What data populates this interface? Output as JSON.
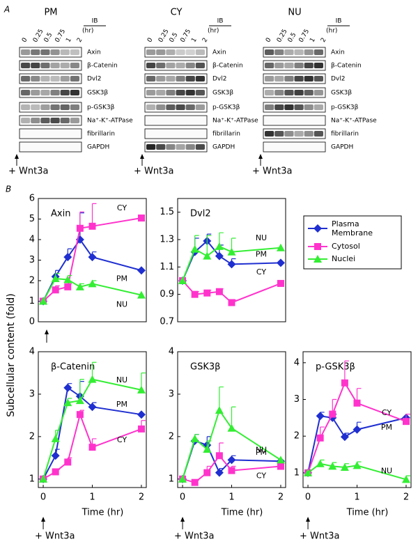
{
  "panel_a": {
    "label": "A",
    "blots": [
      {
        "title": "PM",
        "ib": "IB",
        "times": [
          "0",
          "0.25",
          "0.5",
          "0.75",
          "1",
          "2"
        ],
        "unit": "(hr)",
        "rows": [
          "Axin",
          "β-Catenin",
          "Dvl2",
          "GSK3β",
          "p-GSK3β",
          "Na⁺-K⁺-ATPase",
          "fibrillarin",
          "GAPDH"
        ],
        "treatment": "+ Wnt3a"
      },
      {
        "title": "CY",
        "ib": "IB",
        "times": [
          "0",
          "0.25",
          "0.5",
          "0.75",
          "1",
          "2"
        ],
        "unit": "(hr)",
        "rows": [
          "Axin",
          "β-Catenin",
          "Dvl2",
          "GSK3β",
          "p-GSK3β",
          "Na⁺-K⁺-ATPase",
          "fibrillarin",
          "GAPDH"
        ],
        "treatment": "+ Wnt3a"
      },
      {
        "title": "NU",
        "ib": "IB",
        "times": [
          "0",
          "0.25",
          "0.5",
          "0.75",
          "1",
          "2"
        ],
        "unit": "(hr)",
        "rows": [
          "Axin",
          "β-Catenin",
          "Dvl2",
          "GSK3β",
          "p-GSK3β",
          "Na⁺-K⁺-ATPase",
          "fibrillarin",
          "GAPDH"
        ],
        "treatment": "+ Wnt3a"
      }
    ]
  },
  "panel_b": {
    "label": "B",
    "y_axis_label": "Subcellular content (fold)"
  },
  "chart_data": [
    {
      "type": "line",
      "title": "Axin",
      "x": [
        0,
        0.25,
        0.5,
        0.75,
        1,
        2
      ],
      "xlim": [
        -0.1,
        2.1
      ],
      "ylim": [
        0,
        6
      ],
      "yticks": [
        0,
        1,
        2,
        3,
        4,
        5,
        6
      ],
      "series": [
        {
          "name": "Plasma Membrane",
          "label": "PM",
          "color": "#1f2fd0",
          "values": [
            1,
            2.2,
            3.15,
            4.0,
            3.15,
            2.5
          ],
          "errors": [
            0,
            0.3,
            0.4,
            1.3,
            0.25,
            0
          ]
        },
        {
          "name": "Cytosol",
          "label": "CY",
          "color": "#ff33cc",
          "values": [
            1,
            1.55,
            1.7,
            4.55,
            4.65,
            5.05
          ],
          "errors": [
            0,
            0.2,
            0.15,
            0.8,
            1.1,
            0
          ]
        },
        {
          "name": "Nuclei",
          "label": "NU",
          "color": "#33ee33",
          "values": [
            1,
            2.1,
            2.05,
            1.7,
            1.85,
            1.3
          ],
          "errors": [
            0,
            0.25,
            0.2,
            0.15,
            0.15,
            0
          ]
        }
      ]
    },
    {
      "type": "line",
      "title": "Dvl2",
      "x": [
        0,
        0.25,
        0.5,
        0.75,
        1,
        2
      ],
      "xlim": [
        -0.1,
        2.1
      ],
      "ylim": [
        0.7,
        1.6
      ],
      "yticks": [
        0.7,
        0.9,
        1.1,
        1.3,
        1.5
      ],
      "series": [
        {
          "name": "Plasma Membrane",
          "label": "PM",
          "color": "#1f2fd0",
          "values": [
            1,
            1.21,
            1.29,
            1.18,
            1.12,
            1.13
          ],
          "errors": [
            0,
            0.1,
            0.05,
            0.08,
            0.04,
            0
          ]
        },
        {
          "name": "Cytosol",
          "label": "CY",
          "color": "#ff33cc",
          "values": [
            1,
            0.9,
            0.91,
            0.92,
            0.84,
            0.98
          ],
          "errors": [
            0,
            0.02,
            0.02,
            0.02,
            0.02,
            0
          ]
        },
        {
          "name": "Nuclei",
          "label": "NU",
          "color": "#33ee33",
          "values": [
            1,
            1.23,
            1.18,
            1.25,
            1.21,
            1.24
          ],
          "errors": [
            0,
            0.1,
            0.15,
            0.1,
            0.1,
            0
          ]
        }
      ]
    },
    {
      "type": "line",
      "title": "β-Catenin",
      "x": [
        0,
        0.25,
        0.5,
        0.75,
        1,
        2
      ],
      "xlim": [
        -0.1,
        2.1
      ],
      "xticks": [
        0,
        1,
        2
      ],
      "xlabel": "Time (hr)",
      "treatment": "+ Wnt3a",
      "ylim": [
        0.8,
        4
      ],
      "yticks": [
        1,
        2,
        3,
        4
      ],
      "series": [
        {
          "name": "Plasma Membrane",
          "label": "PM",
          "color": "#1f2fd0",
          "values": [
            1,
            1.55,
            3.15,
            2.95,
            2.7,
            2.52
          ],
          "errors": [
            0,
            0.15,
            0.1,
            0.35,
            0.1,
            0
          ]
        },
        {
          "name": "Cytosol",
          "label": "CY",
          "color": "#ff33cc",
          "values": [
            1,
            1.17,
            1.4,
            2.52,
            1.75,
            2.18
          ],
          "errors": [
            0,
            0.05,
            0.1,
            0.1,
            0.2,
            0.2
          ]
        },
        {
          "name": "Nuclei",
          "label": "NU",
          "color": "#33ee33",
          "values": [
            1,
            1.95,
            2.8,
            2.85,
            3.35,
            3.1
          ],
          "errors": [
            0,
            0.2,
            0.1,
            0.5,
            0.4,
            0.4
          ]
        }
      ]
    },
    {
      "type": "line",
      "title": "GSK3β",
      "x": [
        0,
        0.25,
        0.5,
        0.75,
        1,
        2
      ],
      "xlim": [
        -0.1,
        2.1
      ],
      "xticks": [
        0,
        1,
        2
      ],
      "xlabel": "Time (hr)",
      "treatment": "+ Wnt3a",
      "ylim": [
        0.8,
        4
      ],
      "yticks": [
        1,
        2,
        3,
        4
      ],
      "series": [
        {
          "name": "Plasma Membrane",
          "label": "PM",
          "color": "#1f2fd0",
          "values": [
            1,
            1.9,
            1.8,
            1.15,
            1.45,
            1.42
          ],
          "errors": [
            0,
            0.15,
            0.2,
            0.1,
            0.1,
            0
          ]
        },
        {
          "name": "Cytosol",
          "label": "CY",
          "color": "#ff33cc",
          "values": [
            1,
            0.92,
            1.15,
            1.55,
            1.2,
            1.3
          ],
          "errors": [
            0,
            0.05,
            0.15,
            0.3,
            0.1,
            0
          ]
        },
        {
          "name": "Nuclei",
          "label": "NU",
          "color": "#33ee33",
          "values": [
            1,
            1.95,
            1.7,
            2.62,
            2.2,
            1.45
          ],
          "errors": [
            0,
            0.1,
            0.2,
            0.55,
            0.5,
            0
          ]
        }
      ]
    },
    {
      "type": "line",
      "title": "p-GSK3β",
      "x": [
        0,
        0.25,
        0.5,
        0.75,
        1,
        2
      ],
      "xlim": [
        -0.1,
        2.1
      ],
      "xticks": [
        0,
        1,
        2
      ],
      "xlabel": "Time (hr)",
      "treatment": "+ Wnt3a",
      "ylim": [
        0.6,
        4.3
      ],
      "yticks": [
        1,
        2,
        3,
        4
      ],
      "series": [
        {
          "name": "Plasma Membrane",
          "label": "PM",
          "color": "#1f2fd0",
          "values": [
            1,
            2.55,
            2.5,
            1.98,
            2.18,
            2.5
          ],
          "errors": [
            0,
            0.1,
            0.1,
            0.1,
            0.2,
            0
          ]
        },
        {
          "name": "Cytosol",
          "label": "CY",
          "color": "#ff33cc",
          "values": [
            1,
            1.95,
            2.6,
            3.45,
            2.9,
            2.4
          ],
          "errors": [
            0,
            0.3,
            0.4,
            0.6,
            0.4,
            0.2
          ]
        },
        {
          "name": "Nuclei",
          "label": "NU",
          "color": "#33ee33",
          "values": [
            1,
            1.25,
            1.18,
            1.15,
            1.2,
            0.82
          ],
          "errors": [
            0,
            0.1,
            0.1,
            0.1,
            0.1,
            0.1
          ]
        }
      ]
    }
  ]
}
